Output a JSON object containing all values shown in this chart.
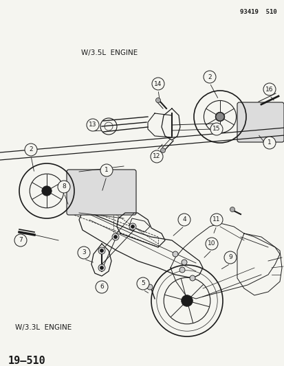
{
  "title": "19–510",
  "subtitle_top": "W/3.3L  ENGINE",
  "subtitle_bottom": "W/3.5L  ENGINE",
  "part_number": "93419  510",
  "bg_color": "#f0f0f0",
  "line_color": "#1a1a1a",
  "fig_width": 4.14,
  "fig_height": 5.33,
  "dpi": 100
}
